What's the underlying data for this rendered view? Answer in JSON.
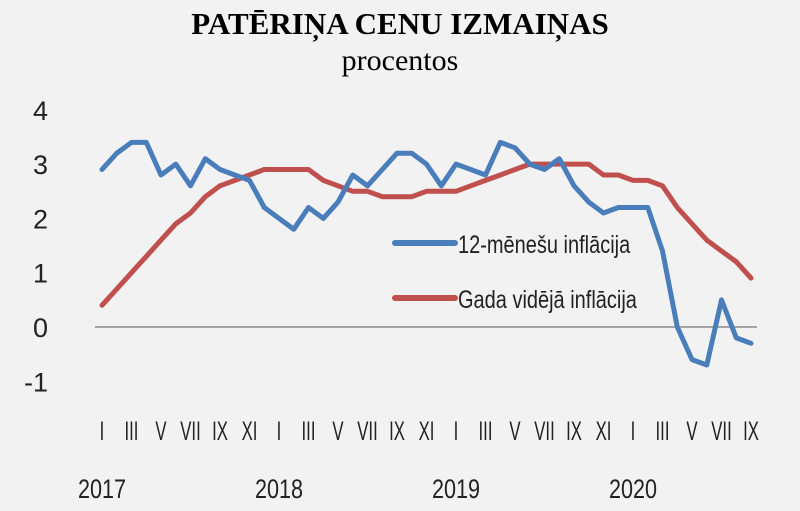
{
  "chart_data": {
    "type": "line",
    "title": "PATĒRIŅA CENU IZMAIŅAS",
    "subtitle": "procentos",
    "xlabel": "",
    "ylabel": "",
    "ylim": [
      -1,
      4
    ],
    "yticks": [
      "4",
      "3",
      "2",
      "1",
      "0",
      "-1"
    ],
    "x_start": "2017-01",
    "x_end": "2020-09",
    "x_frequency": "monthly",
    "month_tick_labels": [
      "I",
      "III",
      "V",
      "VII",
      "IX",
      "XI",
      "I",
      "III",
      "V",
      "VII",
      "IX",
      "XI",
      "I",
      "III",
      "V",
      "VII",
      "IX",
      "XI",
      "I",
      "III",
      "V",
      "VII",
      "IX"
    ],
    "year_labels": [
      "2017",
      "2018",
      "2019",
      "2020"
    ],
    "grid": false,
    "zero_line": true,
    "legend_position": "center-right",
    "series": [
      {
        "name": "12-mēnešu inflācija",
        "color": "#4a7ebb",
        "values": [
          2.9,
          3.2,
          3.4,
          3.4,
          2.8,
          3.0,
          2.6,
          3.1,
          2.9,
          2.8,
          2.7,
          2.2,
          2.0,
          1.8,
          2.2,
          2.0,
          2.3,
          2.8,
          2.6,
          2.9,
          3.2,
          3.2,
          3.0,
          2.6,
          3.0,
          2.9,
          2.8,
          3.4,
          3.3,
          3.0,
          2.9,
          3.1,
          2.6,
          2.3,
          2.1,
          2.2,
          2.2,
          2.2,
          1.4,
          0.0,
          -0.6,
          -0.7,
          0.5,
          -0.2,
          -0.3
        ]
      },
      {
        "name": "Gada vidējā inflācija",
        "color": "#c0504d",
        "values": [
          0.4,
          0.7,
          1.0,
          1.3,
          1.6,
          1.9,
          2.1,
          2.4,
          2.6,
          2.7,
          2.8,
          2.9,
          2.9,
          2.9,
          2.9,
          2.7,
          2.6,
          2.5,
          2.5,
          2.4,
          2.4,
          2.4,
          2.5,
          2.5,
          2.5,
          2.6,
          2.7,
          2.8,
          2.9,
          3.0,
          3.0,
          3.0,
          3.0,
          3.0,
          2.8,
          2.8,
          2.7,
          2.7,
          2.6,
          2.2,
          1.9,
          1.6,
          1.4,
          1.2,
          0.9
        ]
      }
    ]
  }
}
